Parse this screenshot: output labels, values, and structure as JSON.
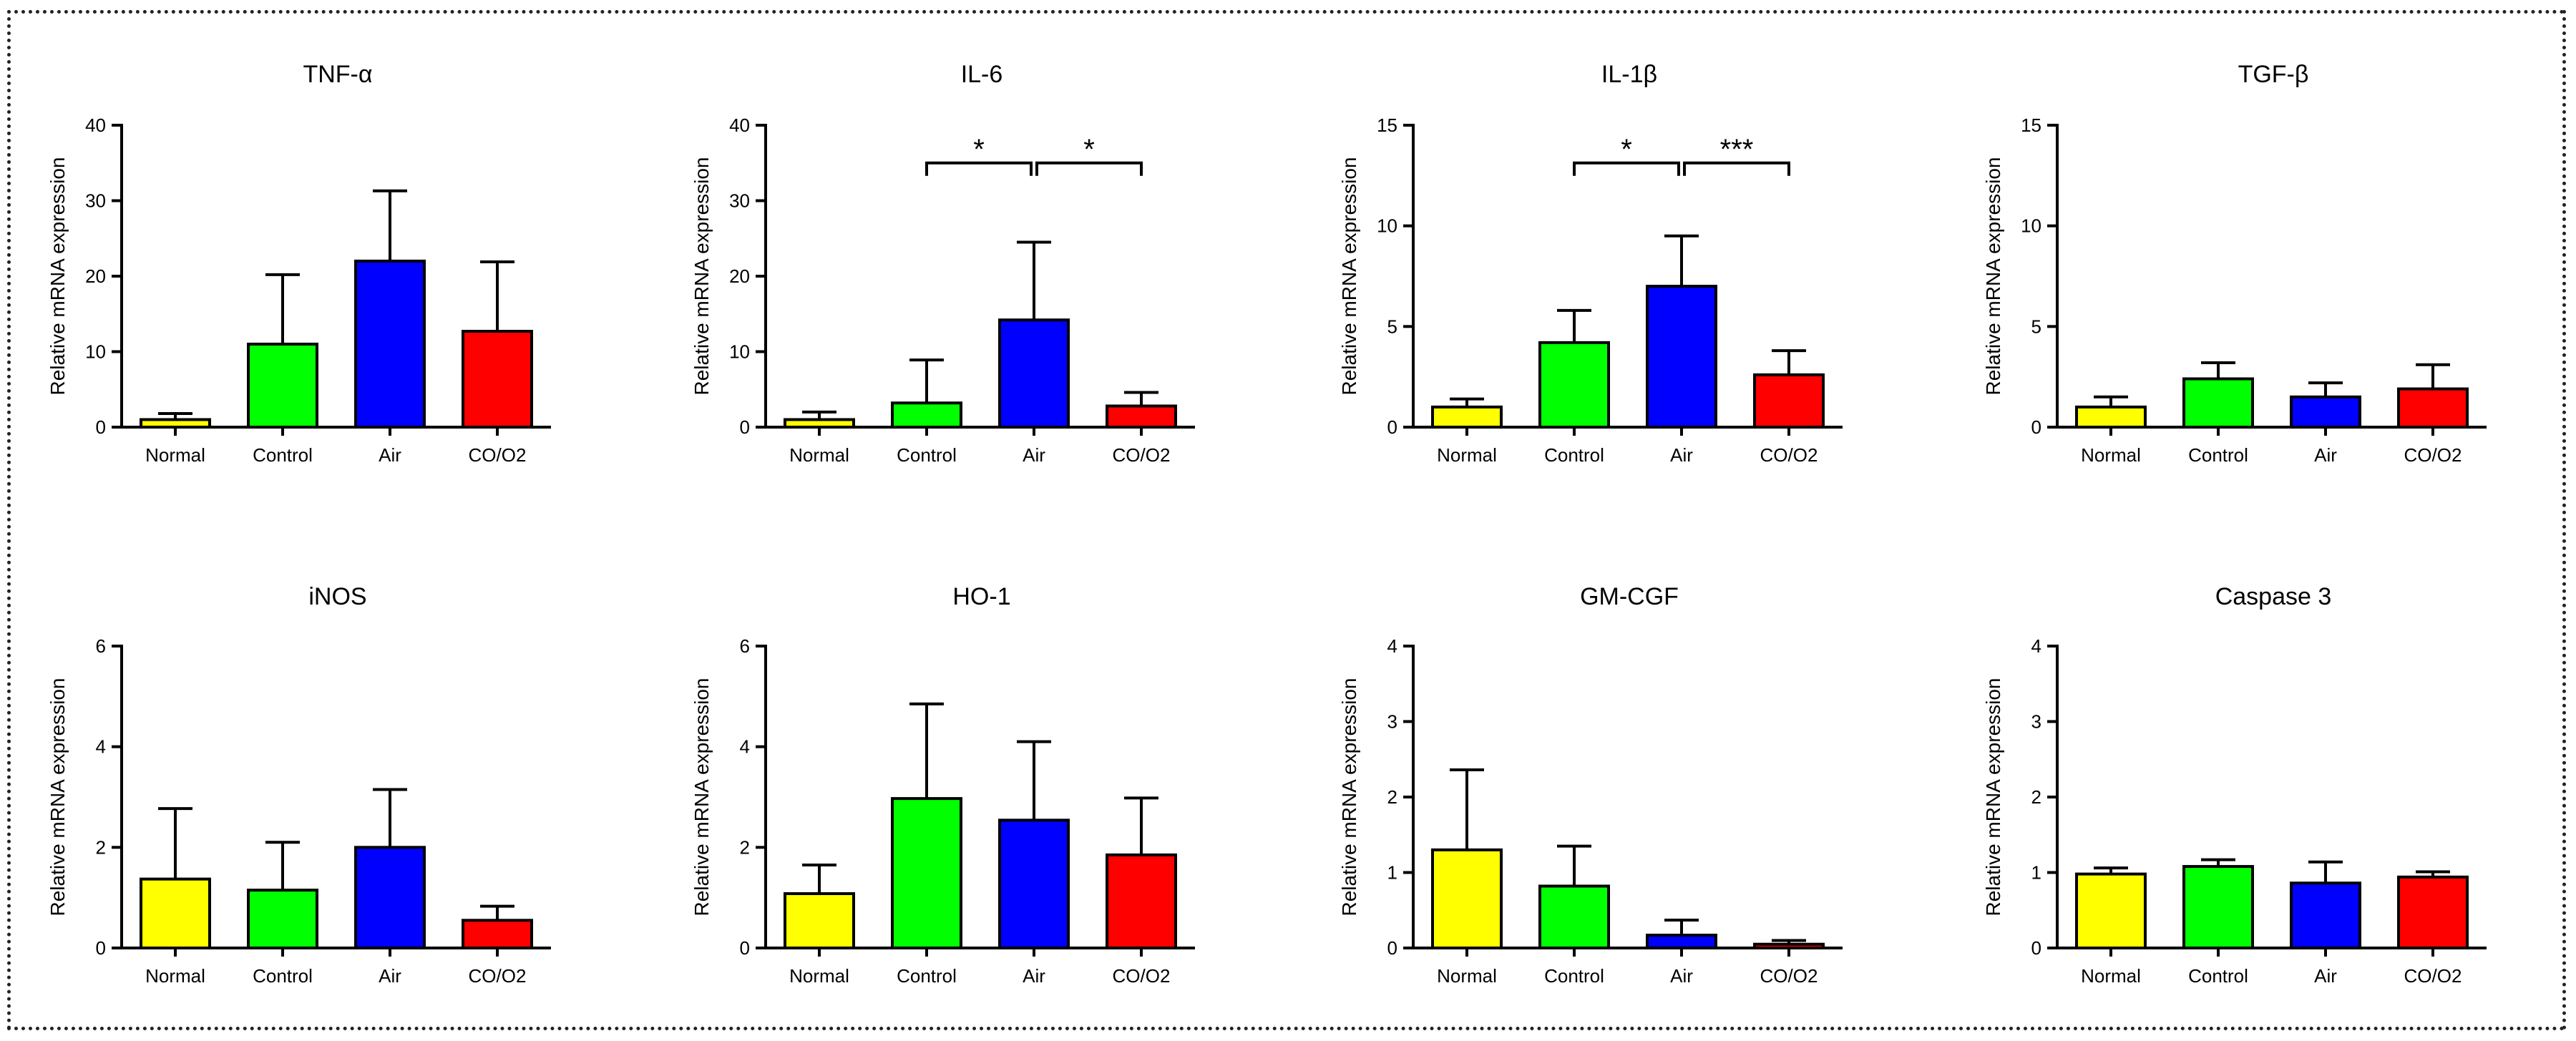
{
  "chart_data": [
    {
      "type": "bar",
      "title": "TNF-α",
      "xlabel": "",
      "ylabel": "Relative mRNA expression",
      "categories": [
        "Normal",
        "Control",
        "Air",
        "CO/O2"
      ],
      "values": [
        1.0,
        11.0,
        22.0,
        12.7
      ],
      "errors": [
        0.8,
        9.2,
        9.3,
        9.2
      ],
      "ylim": [
        0,
        40
      ],
      "yticks": [
        "0",
        "10",
        "20",
        "30",
        "40"
      ],
      "significance": []
    },
    {
      "type": "bar",
      "title": "IL-6",
      "xlabel": "",
      "ylabel": "Relative mRNA expression",
      "categories": [
        "Normal",
        "Control",
        "Air",
        "CO/O2"
      ],
      "values": [
        1.0,
        3.2,
        14.2,
        2.8
      ],
      "errors": [
        1.0,
        5.7,
        10.3,
        1.8
      ],
      "ylim": [
        0,
        40
      ],
      "yticks": [
        "0",
        "10",
        "20",
        "30",
        "40"
      ],
      "significance": [
        {
          "from": 1,
          "to": 2,
          "label": "*"
        },
        {
          "from": 2,
          "to": 3,
          "label": "*"
        }
      ]
    },
    {
      "type": "bar",
      "title": "IL-1β",
      "xlabel": "",
      "ylabel": "Relative mRNA expression",
      "categories": [
        "Normal",
        "Control",
        "Air",
        "CO/O2"
      ],
      "values": [
        1.0,
        4.2,
        7.0,
        2.6
      ],
      "errors": [
        0.4,
        1.6,
        2.5,
        1.2
      ],
      "ylim": [
        0,
        15
      ],
      "yticks": [
        "0",
        "5",
        "10",
        "15"
      ],
      "significance": [
        {
          "from": 1,
          "to": 2,
          "label": "*"
        },
        {
          "from": 2,
          "to": 3,
          "label": "***"
        }
      ]
    },
    {
      "type": "bar",
      "title": "TGF-β",
      "xlabel": "",
      "ylabel": "Relative mRNA expression",
      "categories": [
        "Normal",
        "Control",
        "Air",
        "CO/O2"
      ],
      "values": [
        1.0,
        2.4,
        1.5,
        1.9
      ],
      "errors": [
        0.5,
        0.8,
        0.7,
        1.2
      ],
      "ylim": [
        0,
        15
      ],
      "yticks": [
        "0",
        "5",
        "10",
        "15"
      ],
      "significance": []
    },
    {
      "type": "bar",
      "title": "iNOS",
      "xlabel": "",
      "ylabel": "Relative mRNA expression",
      "categories": [
        "Normal",
        "Control",
        "Air",
        "CO/O2"
      ],
      "values": [
        1.37,
        1.15,
        2.0,
        0.55
      ],
      "errors": [
        1.4,
        0.95,
        1.15,
        0.28
      ],
      "ylim": [
        0,
        6
      ],
      "yticks": [
        "0",
        "2",
        "4",
        "6"
      ],
      "significance": []
    },
    {
      "type": "bar",
      "title": "HO-1",
      "xlabel": "",
      "ylabel": "Relative mRNA expression",
      "categories": [
        "Normal",
        "Control",
        "Air",
        "CO/O2"
      ],
      "values": [
        1.08,
        2.97,
        2.54,
        1.85
      ],
      "errors": [
        0.57,
        1.88,
        1.56,
        1.13
      ],
      "ylim": [
        0,
        6
      ],
      "yticks": [
        "0",
        "2",
        "4",
        "6"
      ],
      "significance": []
    },
    {
      "type": "bar",
      "title": "GM-CGF",
      "xlabel": "",
      "ylabel": "Relative mRNA expression",
      "categories": [
        "Normal",
        "Control",
        "Air",
        "CO/O2"
      ],
      "values": [
        1.3,
        0.82,
        0.17,
        0.05
      ],
      "errors": [
        1.06,
        0.53,
        0.2,
        0.05
      ],
      "ylim": [
        0,
        4
      ],
      "yticks": [
        "0",
        "1",
        "2",
        "3",
        "4"
      ],
      "significance": []
    },
    {
      "type": "bar",
      "title": "Caspase 3",
      "xlabel": "",
      "ylabel": "Relative mRNA expression",
      "categories": [
        "Normal",
        "Control",
        "Air",
        "CO/O2"
      ],
      "values": [
        0.98,
        1.08,
        0.86,
        0.94
      ],
      "errors": [
        0.08,
        0.09,
        0.28,
        0.07
      ],
      "ylim": [
        0,
        4
      ],
      "yticks": [
        "0",
        "1",
        "2",
        "3",
        "4"
      ],
      "significance": []
    }
  ],
  "colors": {
    "Normal": "#ffff00",
    "Control": "#00ff00",
    "Air": "#0000ff",
    "CO/O2": "#ff0000"
  }
}
